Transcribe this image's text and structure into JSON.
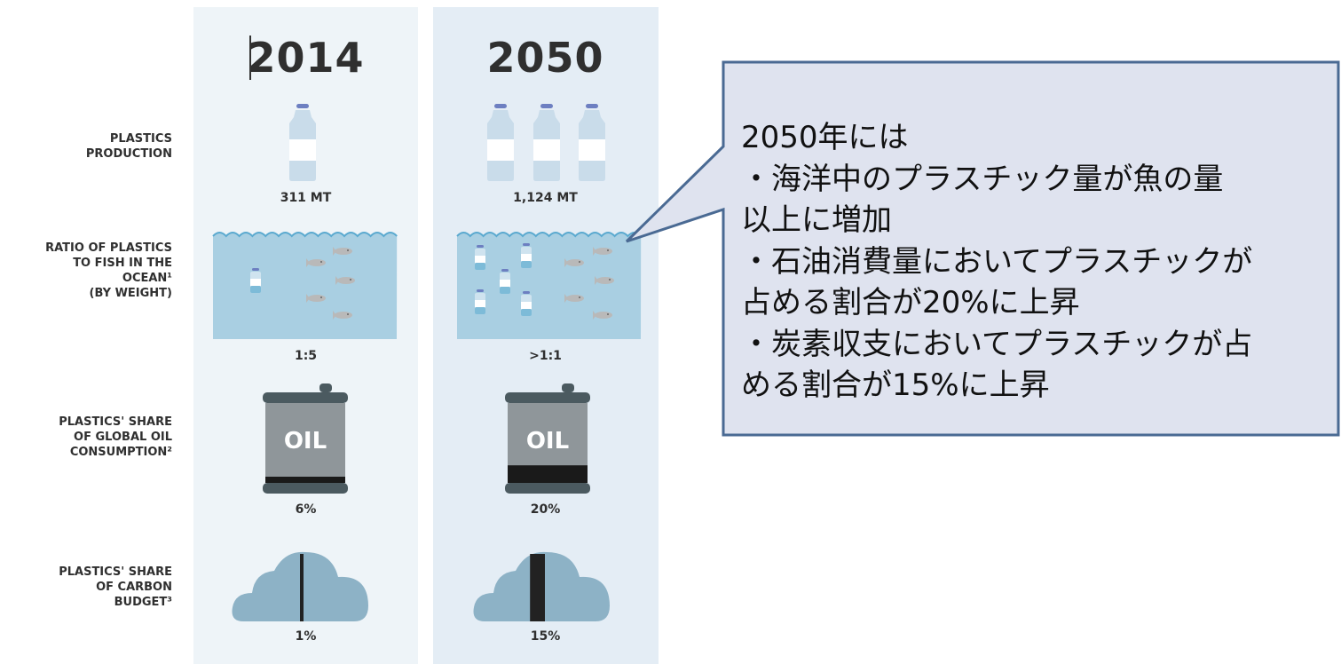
{
  "columns": [
    {
      "year": "2014",
      "production": "311 MT",
      "ratio": "1:5",
      "oil": "6%",
      "carbon": "1%",
      "oil_share": 0.06,
      "carbon_share": 0.01,
      "bottles": 1
    },
    {
      "year": "2050",
      "production": "1,124 MT",
      "ratio": ">1:1",
      "oil": "20%",
      "carbon": "15%",
      "oil_share": 0.2,
      "carbon_share": 0.15,
      "bottles": 3
    }
  ],
  "rows": {
    "production_label": "PLASTICS\nPRODUCTION",
    "ratio_label": "RATIO OF PLASTICS\nTO FISH IN THE\nOCEAN¹\n(BY WEIGHT)",
    "oil_label": "PLASTICS' SHARE\nOF GLOBAL OIL\nCONSUMPTION²",
    "carbon_label": "PLASTICS' SHARE\nOF CARBON\nBUDGET³"
  },
  "icons": {
    "oil_text": "OIL",
    "bottle": "bottle-icon",
    "fish": "fish-icon",
    "barrel": "oil-barrel-icon",
    "cloud": "cloud-icon"
  },
  "callout": {
    "text": "2050年には\n・海洋中のプラスチック量が魚の量\n以上に増加\n・石油消費量においてプラスチックが\n占める割合が20%に上昇\n・炭素収支においてプラスチックが占\nめる割合が15%に上昇"
  },
  "colors": {
    "bottle_body": "#c9dcea",
    "bottle_cap": "#6d7fc1",
    "water": "#a9cfe2",
    "wave": "#5aa9cf",
    "fish": "#b9b9b9",
    "barrel_body": "#8f969a",
    "barrel_dark": "#4b5a60",
    "cloud": "#8db2c6",
    "callout_fill": "#dfe3ef",
    "callout_border": "#4a6a93"
  }
}
